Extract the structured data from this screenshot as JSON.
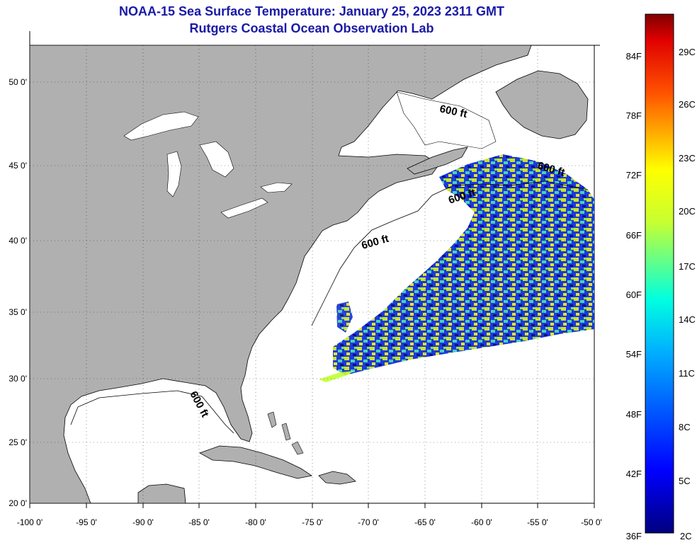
{
  "title": {
    "line1": "NOAA-15 Sea Surface Temperature:  January 25, 2023 2311 GMT",
    "line2": "Rutgers Coastal Ocean Observation Lab"
  },
  "map": {
    "x_ticks": [
      "-100 0'",
      "-95 0'",
      "-90 0'",
      "-85 0'",
      "-80 0'",
      "-75 0'",
      "-70 0'",
      "-65 0'",
      "-60 0'",
      "-55 0'",
      "-50 0'"
    ],
    "y_ticks": [
      "50 0'",
      "45 0'",
      "40 0'",
      "35 0'",
      "30 0'",
      "25 0'",
      "20 0'"
    ],
    "contour_labels": [
      "600 ft",
      "600 ft",
      "600 ft",
      "600 ft",
      "600 ft"
    ],
    "land_color": "#b0b0b0",
    "ocean_color": "#ffffff"
  },
  "colorbar": {
    "fahrenheit": [
      "84F",
      "78F",
      "72F",
      "66F",
      "60F",
      "54F",
      "48F",
      "42F",
      "36F"
    ],
    "celsius": [
      "29C",
      "26C",
      "23C",
      "20C",
      "17C",
      "14C",
      "11C",
      "8C",
      "5C",
      "2C"
    ],
    "colormap": "jet"
  }
}
